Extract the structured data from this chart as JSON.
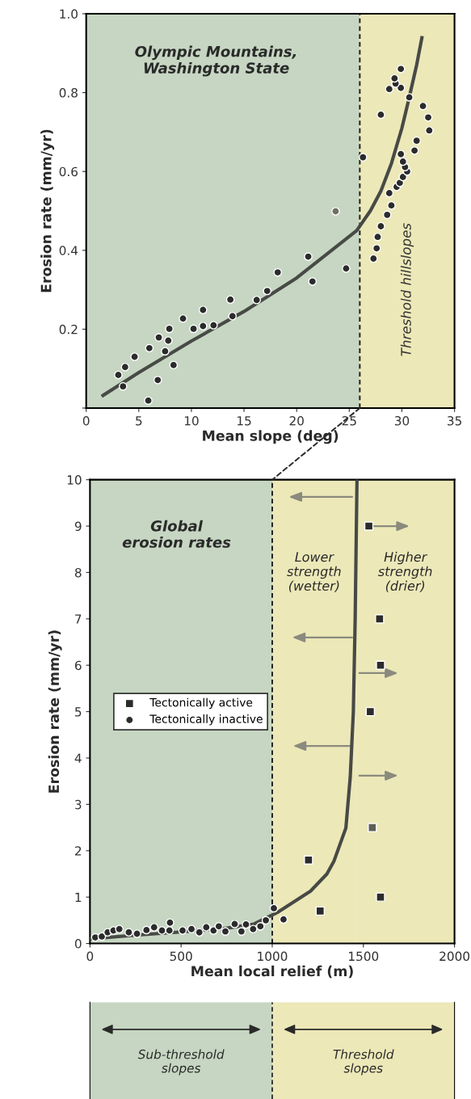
{
  "chart_data": [
    {
      "type": "scatter",
      "title": "Olympic Mountains,\nWashington State",
      "xlabel": "Mean slope (deg)",
      "ylabel": "Erosion rate (mm/yr)",
      "xlim": [
        0,
        35
      ],
      "xticks": [
        0,
        5,
        10,
        15,
        20,
        25,
        30,
        35
      ],
      "ylim": [
        0,
        1.0
      ],
      "yticks": [
        {
          "value": 0,
          "label": null
        },
        0.2,
        0.4,
        0.6,
        0.8,
        {
          "value": 1.0,
          "label": "1.0"
        }
      ],
      "grid": false,
      "legend": false,
      "series": [
        {
          "type": "scatter",
          "marker": "circle",
          "color": "#2b2b2b",
          "x": [
            3.05,
            3.7,
            3.5,
            4.6,
            6.0,
            5.9,
            6.8,
            6.9,
            7.8,
            7.9,
            7.5,
            8.3,
            9.2,
            10.2,
            11.1,
            11.1,
            12.1,
            13.7,
            13.9,
            16.2,
            17.2,
            18.2,
            21.1,
            21.5,
            24.7,
            27.3,
            27.6,
            27.7,
            28.0,
            28.6,
            29.0,
            28.8,
            29.5,
            29.8,
            30.1,
            30.5,
            30.3,
            30.1,
            29.9,
            26.3,
            31.2,
            31.4,
            32.6,
            32.5,
            32.0,
            28.0,
            30.7,
            29.9,
            29.4,
            28.8,
            29.3,
            29.9
          ],
          "values": [
            0.084,
            0.104,
            0.055,
            0.13,
            0.152,
            0.019,
            0.071,
            0.179,
            0.171,
            0.201,
            0.144,
            0.109,
            0.227,
            0.201,
            0.208,
            0.249,
            0.21,
            0.275,
            0.233,
            0.274,
            0.297,
            0.344,
            0.384,
            0.321,
            0.354,
            0.379,
            0.405,
            0.434,
            0.461,
            0.49,
            0.514,
            0.545,
            0.561,
            0.571,
            0.586,
            0.6,
            0.611,
            0.625,
            0.644,
            0.636,
            0.653,
            0.678,
            0.704,
            0.737,
            0.766,
            0.744,
            0.788,
            0.812,
            0.823,
            0.809,
            0.836,
            0.86
          ]
        },
        {
          "type": "scatter",
          "marker": "circle",
          "color": "#6e6e62",
          "x": [
            23.7
          ],
          "values": [
            0.499
          ]
        },
        {
          "type": "line",
          "color": "#474a45",
          "x": [
            1.6,
            5,
            10,
            15,
            20,
            25.7,
            27,
            28,
            29,
            30,
            30.7,
            31.4,
            31.9
          ],
          "values": [
            0.032,
            0.09,
            0.17,
            0.245,
            0.33,
            0.45,
            0.5,
            0.55,
            0.62,
            0.71,
            0.788,
            0.87,
            0.939
          ]
        }
      ],
      "ref_lines": [
        {
          "axis": "x",
          "value": 26,
          "label": null,
          "color": "#1e1e1e",
          "line_style": "dashed"
        }
      ],
      "bands": [
        {
          "axis": "x",
          "from": 0,
          "to": 26,
          "label": null,
          "color": "#c6d6c2"
        },
        {
          "axis": "x",
          "from": 26,
          "to": 35,
          "label": "Threshold hillslopes",
          "color": "#ece8b8"
        }
      ]
    },
    {
      "type": "scatter",
      "title": "Global\nerosion rates",
      "xlabel": "Mean local relief (m)",
      "ylabel": "Erosion rate (mm/yr)",
      "xlim": [
        0,
        2000
      ],
      "xticks": [
        0,
        500,
        1000,
        1500,
        2000
      ],
      "ylim": [
        0,
        10
      ],
      "yticks": [
        0,
        1,
        2,
        3,
        4,
        5,
        6,
        7,
        8,
        9,
        10
      ],
      "grid": false,
      "legend": "center left",
      "series": [
        {
          "type": "scatter",
          "name": "Tectonically active",
          "marker": "square",
          "color": "#2b2b2b",
          "x": [
            1530,
            1589,
            1594,
            1538,
            1199,
            1594,
            1263
          ],
          "values": [
            9.0,
            7.0,
            6.0,
            5.0,
            1.8,
            1.0,
            0.7
          ]
        },
        {
          "type": "scatter",
          "marker": "square",
          "color": "#5e5e58",
          "x": [
            1549
          ],
          "values": [
            2.5
          ]
        },
        {
          "type": "scatter",
          "name": "Tectonically inactive",
          "marker": "circle",
          "color": "#2b2b2b",
          "x": [
            29,
            65,
            97,
            129,
            161,
            213,
            258,
            310,
            352,
            395,
            439,
            436,
            508,
            557,
            600,
            638,
            678,
            707,
            743,
            794,
            831,
            856,
            895,
            935,
            965,
            1009,
            1062
          ],
          "values": [
            0.13,
            0.15,
            0.24,
            0.28,
            0.31,
            0.24,
            0.21,
            0.29,
            0.35,
            0.28,
            0.45,
            0.28,
            0.28,
            0.31,
            0.24,
            0.35,
            0.28,
            0.37,
            0.26,
            0.42,
            0.26,
            0.41,
            0.31,
            0.37,
            0.5,
            0.76,
            0.52
          ]
        },
        {
          "type": "line",
          "color": "#474a45",
          "x": [
            0,
            250,
            500,
            750,
            900,
            1033,
            1100,
            1210,
            1300,
            1339,
            1404,
            1428,
            1445,
            1455,
            1465
          ],
          "values": [
            0.1,
            0.18,
            0.25,
            0.33,
            0.42,
            0.68,
            0.85,
            1.13,
            1.5,
            1.78,
            2.49,
            3.59,
            5,
            7,
            10
          ]
        }
      ],
      "ref_lines": [
        {
          "axis": "x",
          "value": 1000,
          "label": null,
          "color": "#1e1e1e",
          "line_style": "dashed"
        }
      ],
      "bands": [
        {
          "axis": "x",
          "from": 0,
          "to": 1000,
          "label": null,
          "color": "#c6d6c2"
        },
        {
          "axis": "x",
          "from": 1000,
          "to": 1460,
          "label": "Lower\nstrength\n(wetter)",
          "color": "#ece8b8"
        },
        {
          "axis": "x",
          "from": 1460,
          "to": 2000,
          "label": "Higher\nstrength\n(drier)",
          "color": "#ece8b8"
        }
      ]
    },
    {
      "type": "other",
      "annotations": [
        "Sub-threshold\nslopes",
        "Threshold\nslopes"
      ]
    }
  ]
}
